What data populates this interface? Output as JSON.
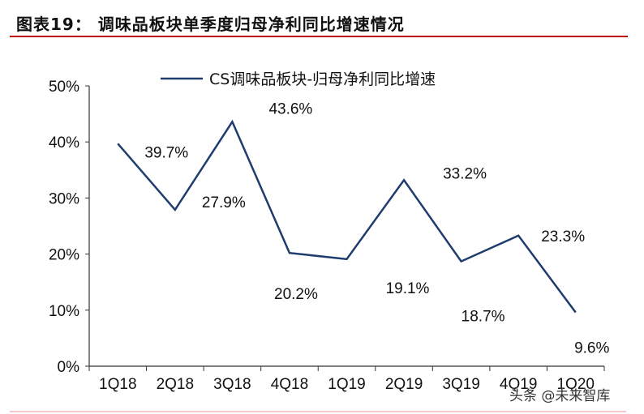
{
  "title": "图表19：  调味品板块单季度归母净利同比增速情况",
  "watermark": "头条 @未来智库",
  "chart_data": {
    "type": "line",
    "title": "",
    "xlabel": "",
    "ylabel": "",
    "categories": [
      "1Q18",
      "2Q18",
      "3Q18",
      "4Q18",
      "1Q19",
      "2Q19",
      "3Q19",
      "4Q19",
      "1Q20"
    ],
    "series": [
      {
        "name": "CS调味品板块-归母净利同比增速",
        "values": [
          39.7,
          27.9,
          43.6,
          20.2,
          19.1,
          33.2,
          18.7,
          23.3,
          9.6
        ],
        "color": "#1f3c6e"
      }
    ],
    "data_labels": [
      "39.7%",
      "27.9%",
      "43.6%",
      "20.2%",
      "19.1%",
      "33.2%",
      "18.7%",
      "23.3%",
      "9.6%"
    ],
    "ylim": [
      0,
      50
    ],
    "yticks": [
      "0%",
      "10%",
      "20%",
      "30%",
      "40%",
      "50%"
    ],
    "grid": false,
    "legend": "top"
  }
}
